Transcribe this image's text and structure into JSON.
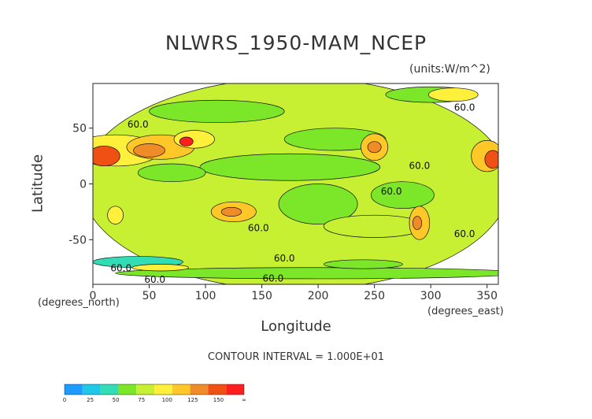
{
  "chart_data": {
    "type": "heatmap",
    "title": "NLWRS_1950-MAM_NCEP",
    "units": "(units:W/m^2)",
    "xlabel": "Longitude",
    "ylabel": "Latitude",
    "x_axis_note": "(degrees_east)",
    "y_axis_note": "(degrees_north)",
    "contour_interval_text": "CONTOUR INTERVAL = 1.000E+01",
    "xlim": [
      0,
      360
    ],
    "ylim": [
      -90,
      90
    ],
    "xticks": [
      0,
      50,
      100,
      150,
      200,
      250,
      300,
      350
    ],
    "yticks": [
      50,
      0,
      -50
    ],
    "contour_labels": [
      {
        "text": "60.0",
        "x": 330,
        "y": 68
      },
      {
        "text": "60.0",
        "x": 40,
        "y": 53
      },
      {
        "text": "60.0",
        "x": 290,
        "y": 16
      },
      {
        "text": "60.0",
        "x": 265,
        "y": -7
      },
      {
        "text": "60.0",
        "x": 147,
        "y": -40
      },
      {
        "text": "60.0",
        "x": 330,
        "y": -45
      },
      {
        "text": "60.0",
        "x": 170,
        "y": -67
      },
      {
        "text": "60.0",
        "x": 25,
        "y": -76
      },
      {
        "text": "60.0",
        "x": 55,
        "y": -86
      },
      {
        "text": "60.0",
        "x": 160,
        "y": -85
      }
    ],
    "colorbar": {
      "tick_labels": [
        "0",
        "25",
        "50",
        "75",
        "100",
        "125",
        "150",
        "∞"
      ],
      "colors": [
        "#1e9bff",
        "#1ec8e6",
        "#32dcb4",
        "#7ce628",
        "#c8f032",
        "#fff03c",
        "#ffc828",
        "#f08c28",
        "#f05014",
        "#ff1e1e"
      ]
    },
    "regions": [
      {
        "x": 180,
        "y": 0,
        "rx": 190,
        "ry": 95,
        "value": 72
      },
      {
        "x": 175,
        "y": 15,
        "rx": 80,
        "ry": 12,
        "value": 55
      },
      {
        "x": 200,
        "y": -18,
        "rx": 35,
        "ry": 18,
        "value": 52
      },
      {
        "x": 275,
        "y": -10,
        "rx": 28,
        "ry": 12,
        "value": 50
      },
      {
        "x": 70,
        "y": 10,
        "rx": 30,
        "ry": 8,
        "value": 62
      },
      {
        "x": 215,
        "y": 40,
        "rx": 45,
        "ry": 10,
        "value": 62
      },
      {
        "x": 250,
        "y": -38,
        "rx": 45,
        "ry": 10,
        "value": 64
      },
      {
        "x": 110,
        "y": 65,
        "rx": 60,
        "ry": 10,
        "value": 55
      },
      {
        "x": 300,
        "y": 80,
        "rx": 40,
        "ry": 7,
        "value": 50
      },
      {
        "x": 200,
        "y": -80,
        "rx": 180,
        "ry": 5,
        "value": 58
      },
      {
        "x": 40,
        "y": -70,
        "rx": 40,
        "ry": 5,
        "value": 45
      },
      {
        "x": 240,
        "y": -72,
        "rx": 35,
        "ry": 4,
        "value": 50
      },
      {
        "x": 20,
        "y": 30,
        "rx": 40,
        "ry": 14,
        "value": 95
      },
      {
        "x": 60,
        "y": 33,
        "rx": 30,
        "ry": 11,
        "value": 100
      },
      {
        "x": 90,
        "y": 40,
        "rx": 18,
        "ry": 8,
        "value": 92
      },
      {
        "x": 350,
        "y": 25,
        "rx": 14,
        "ry": 14,
        "value": 100
      },
      {
        "x": 250,
        "y": 33,
        "rx": 12,
        "ry": 12,
        "value": 102
      },
      {
        "x": 125,
        "y": -25,
        "rx": 20,
        "ry": 9,
        "value": 100
      },
      {
        "x": 290,
        "y": -35,
        "rx": 9,
        "ry": 15,
        "value": 100
      },
      {
        "x": 20,
        "y": -28,
        "rx": 7,
        "ry": 8,
        "value": 92
      },
      {
        "x": 320,
        "y": 80,
        "rx": 22,
        "ry": 6,
        "value": 95
      },
      {
        "x": 60,
        "y": -75,
        "rx": 25,
        "ry": 3,
        "value": 92
      },
      {
        "x": 10,
        "y": 25,
        "rx": 14,
        "ry": 9,
        "value": 130
      },
      {
        "x": 355,
        "y": 22,
        "rx": 7,
        "ry": 8,
        "value": 132
      },
      {
        "x": 50,
        "y": 30,
        "rx": 14,
        "ry": 6,
        "value": 118
      },
      {
        "x": 83,
        "y": 38,
        "rx": 6,
        "ry": 4,
        "value": 150
      },
      {
        "x": 250,
        "y": 33,
        "rx": 6,
        "ry": 5,
        "value": 118
      },
      {
        "x": 123,
        "y": -25,
        "rx": 9,
        "ry": 4,
        "value": 118
      },
      {
        "x": 288,
        "y": -35,
        "rx": 4,
        "ry": 6,
        "value": 118
      }
    ]
  }
}
